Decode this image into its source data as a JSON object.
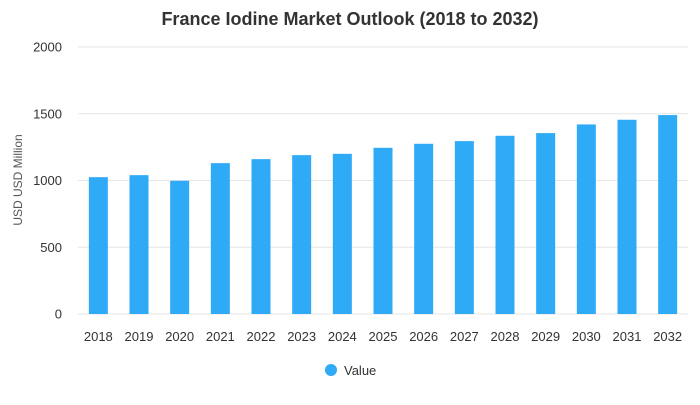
{
  "chart_data": {
    "type": "bar",
    "title": "France Iodine Market Outlook (2018 to 2032)",
    "xlabel": "",
    "ylabel": "USD USD Million",
    "ylim": [
      0,
      2000
    ],
    "yticks": [
      0,
      500,
      1000,
      1500,
      2000
    ],
    "grid": true,
    "legend_position": "bottom",
    "categories": [
      "2018",
      "2019",
      "2020",
      "2021",
      "2022",
      "2023",
      "2024",
      "2025",
      "2026",
      "2027",
      "2028",
      "2029",
      "2030",
      "2031",
      "2032"
    ],
    "series": [
      {
        "name": "Value",
        "color": "#2eaaf7",
        "values": [
          1025,
          1040,
          998,
          1130,
          1160,
          1190,
          1200,
          1245,
          1275,
          1295,
          1335,
          1355,
          1420,
          1455,
          1490
        ]
      }
    ]
  }
}
